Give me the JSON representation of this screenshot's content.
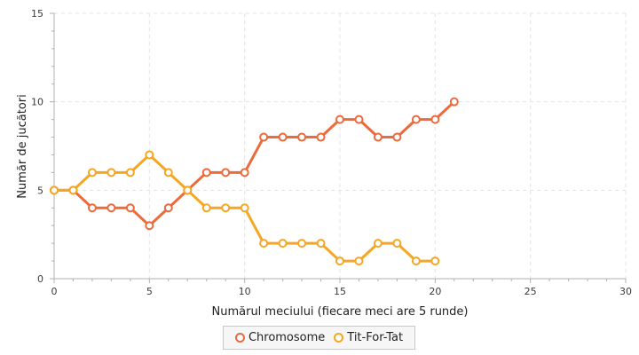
{
  "chart_data": {
    "type": "line",
    "title": "",
    "xlabel": "Numărul meciului (fiecare meci are 5 runde)",
    "ylabel": "Număr de jucători",
    "xlim": [
      0,
      30
    ],
    "ylim": [
      0,
      15
    ],
    "xticks": [
      0,
      5,
      10,
      15,
      20,
      25,
      30
    ],
    "yticks": [
      0,
      5,
      10,
      15
    ],
    "grid": true,
    "legend_position": "bottom",
    "series": [
      {
        "name": "Chromosome",
        "color": "#ec6a3c",
        "x": [
          0,
          1,
          2,
          3,
          4,
          5,
          6,
          7,
          8,
          9,
          10,
          11,
          12,
          13,
          14,
          15,
          16,
          17,
          18,
          19,
          20,
          21
        ],
        "values": [
          5,
          5,
          4,
          4,
          4,
          3,
          4,
          5,
          6,
          6,
          6,
          8,
          8,
          8,
          8,
          9,
          9,
          8,
          8,
          9,
          9,
          10
        ]
      },
      {
        "name": "Tit-For-Tat",
        "color": "#f5a623",
        "x": [
          0,
          1,
          2,
          3,
          4,
          5,
          6,
          7,
          8,
          9,
          10,
          11,
          12,
          13,
          14,
          15,
          16,
          17,
          18,
          19,
          20
        ],
        "values": [
          5,
          5,
          6,
          6,
          6,
          7,
          6,
          5,
          4,
          4,
          4,
          2,
          2,
          2,
          2,
          1,
          1,
          2,
          2,
          1,
          1
        ]
      }
    ]
  }
}
